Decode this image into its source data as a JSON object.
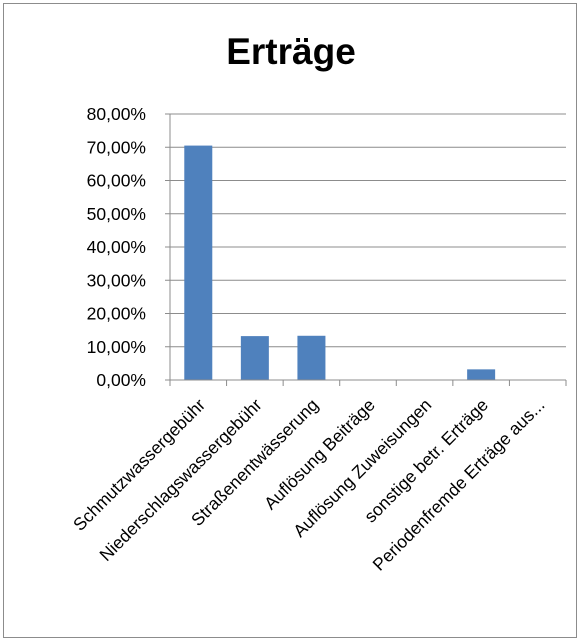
{
  "chart_data": {
    "type": "bar",
    "title": "Erträge",
    "categories": [
      "Schmutzwassergebühr",
      "Niederschlagswassergebühr",
      "Straßenentwässerung",
      "Auflösung Beiträge",
      "Auflösung Zuweisungen",
      "sonstige betr. Erträge",
      "Periodenfremde Erträge aus..."
    ],
    "values": [
      70.5,
      13.2,
      13.3,
      0,
      0,
      3.2,
      0
    ],
    "ylim": [
      0,
      80
    ],
    "yticks": [
      "0,00%",
      "10,00%",
      "20,00%",
      "30,00%",
      "40,00%",
      "50,00%",
      "60,00%",
      "70,00%",
      "80,00%"
    ],
    "xlabel": "",
    "ylabel": "",
    "grid": true,
    "legend": "none",
    "bar_color": "#4f81bd"
  }
}
